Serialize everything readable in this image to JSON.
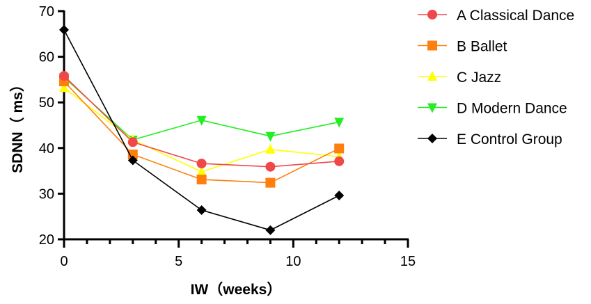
{
  "chart_data": {
    "type": "line",
    "title": "",
    "xlabel": "IW（weeks）",
    "ylabel": "SDNN（ ms）",
    "xlim": [
      0,
      15
    ],
    "ylim": [
      20,
      70
    ],
    "xticks": [
      0,
      5,
      10,
      15
    ],
    "yticks": [
      20,
      30,
      40,
      50,
      60,
      70
    ],
    "grid": false,
    "legend_position": "right",
    "x": [
      0,
      3,
      6,
      9,
      12
    ],
    "series": [
      {
        "name": "A Classical Dance",
        "color": "#f04848",
        "marker": "circle",
        "values": [
          55.8,
          41.3,
          36.6,
          35.9,
          37.1
        ]
      },
      {
        "name": "B Ballet",
        "color": "#ff7f0e",
        "marker": "square",
        "values": [
          54.6,
          38.6,
          33.1,
          32.4,
          39.9
        ]
      },
      {
        "name": "C Jazz",
        "color": "#ffff00",
        "marker": "triangle-up",
        "values": [
          53.2,
          41.8,
          34.8,
          39.7,
          38.1
        ]
      },
      {
        "name": "D Modern Dance",
        "color": "#22ee22",
        "marker": "triangle-down",
        "values": [
          55.5,
          41.8,
          46.1,
          42.6,
          45.7
        ]
      },
      {
        "name": "E Control Group",
        "color": "#000000",
        "marker": "diamond",
        "values": [
          65.9,
          37.3,
          26.4,
          22.0,
          29.6
        ]
      }
    ]
  }
}
